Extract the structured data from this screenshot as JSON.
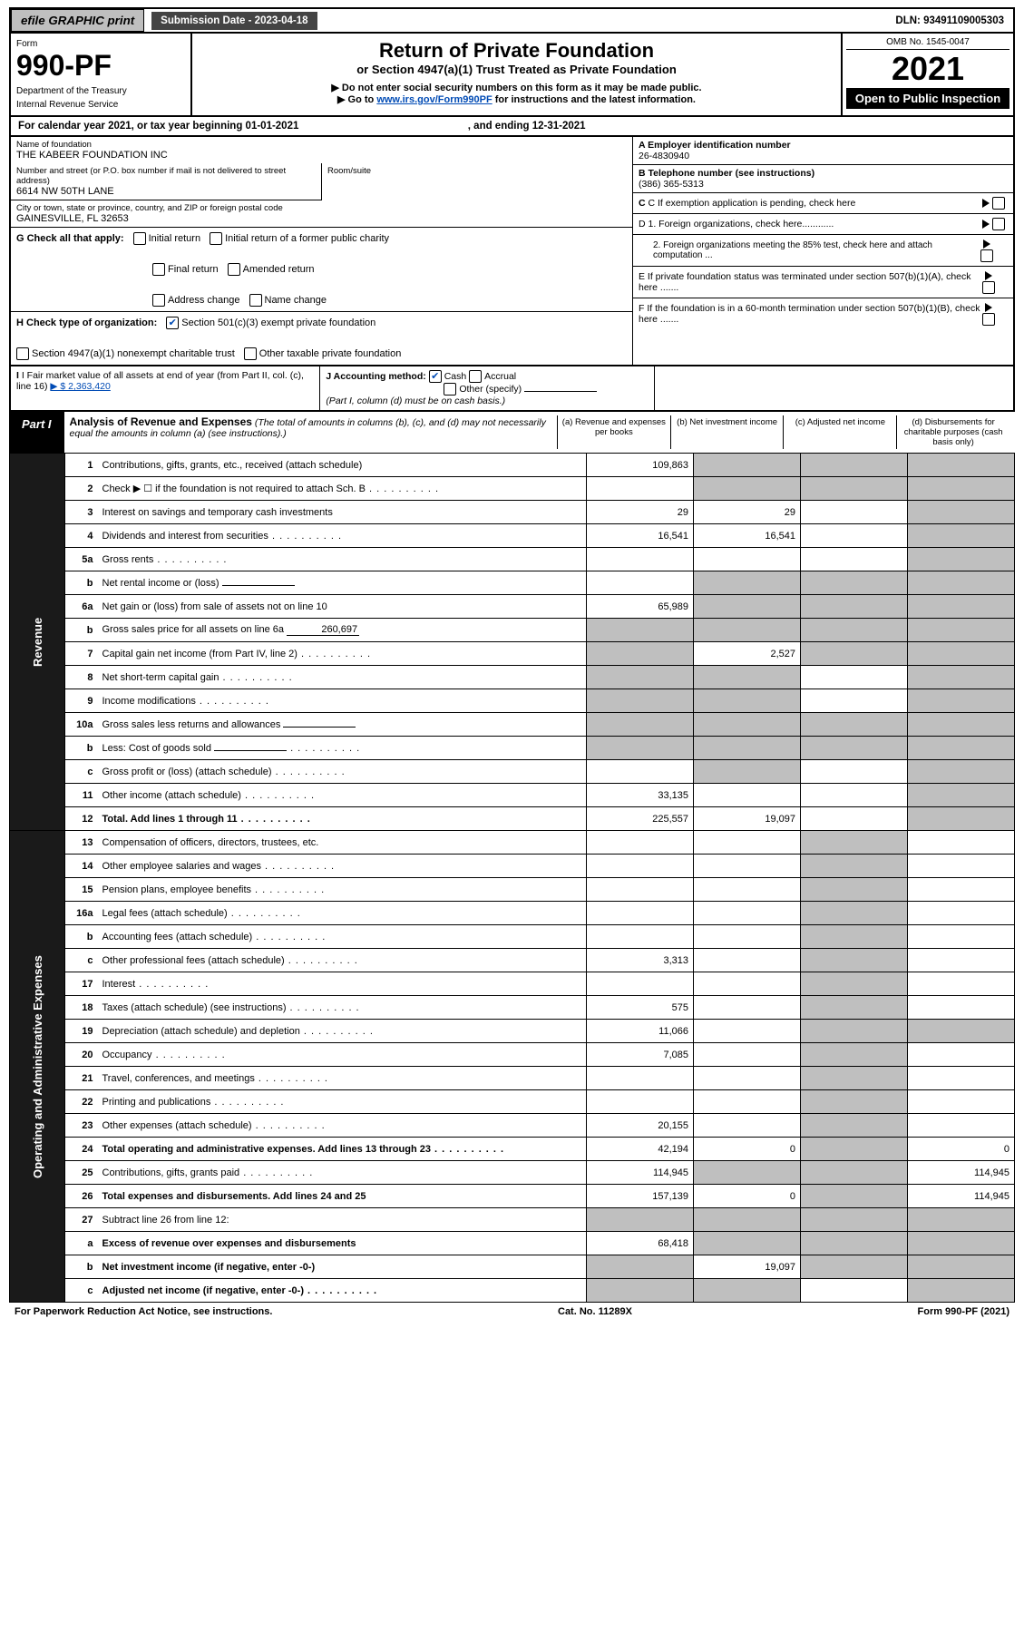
{
  "top": {
    "efile": "efile GRAPHIC print",
    "submission": "Submission Date - 2023-04-18",
    "dln": "DLN: 93491109005303"
  },
  "header": {
    "form_label": "Form",
    "form_no": "990-PF",
    "dept": "Department of the Treasury",
    "irs": "Internal Revenue Service",
    "title": "Return of Private Foundation",
    "subtitle": "or Section 4947(a)(1) Trust Treated as Private Foundation",
    "note1": "▶ Do not enter social security numbers on this form as it may be made public.",
    "note2_pre": "▶ Go to ",
    "note2_link": "www.irs.gov/Form990PF",
    "note2_post": " for instructions and the latest information.",
    "omb": "OMB No. 1545-0047",
    "year": "2021",
    "inspection": "Open to Public Inspection"
  },
  "cal": {
    "text_pre": "For calendar year 2021, or tax year beginning ",
    "begin": "01-01-2021",
    "text_mid": " , and ending ",
    "end": "12-31-2021"
  },
  "id": {
    "name_lbl": "Name of foundation",
    "name": "THE KABEER FOUNDATION INC",
    "addr_lbl": "Number and street (or P.O. box number if mail is not delivered to street address)",
    "addr": "6614 NW 50TH LANE",
    "room_lbl": "Room/suite",
    "city_lbl": "City or town, state or province, country, and ZIP or foreign postal code",
    "city": "GAINESVILLE, FL  32653",
    "A_lbl": "A Employer identification number",
    "A_val": "26-4830940",
    "B_lbl": "B Telephone number (see instructions)",
    "B_val": "(386) 365-5313",
    "C_lbl": "C If exemption application is pending, check here",
    "D1": "D 1. Foreign organizations, check here............",
    "D2": "2. Foreign organizations meeting the 85% test, check here and attach computation ...",
    "E": "E  If private foundation status was terminated under section 507(b)(1)(A), check here .......",
    "F": "F  If the foundation is in a 60-month termination under section 507(b)(1)(B), check here .......",
    "G_lbl": "G Check all that apply:",
    "G_opts": [
      "Initial return",
      "Initial return of a former public charity",
      "Final return",
      "Amended return",
      "Address change",
      "Name change"
    ],
    "H_lbl": "H Check type of organization:",
    "H_opt1": "Section 501(c)(3) exempt private foundation",
    "H_opt2": "Section 4947(a)(1) nonexempt charitable trust",
    "H_opt3": "Other taxable private foundation",
    "I_lbl": "I Fair market value of all assets at end of year (from Part II, col. (c), line 16)",
    "I_amt": "▶ $  2,363,420",
    "J_lbl": "J Accounting method:",
    "J_opts": [
      "Cash",
      "Accrual"
    ],
    "J_other": "Other (specify)",
    "J_note": "(Part I, column (d) must be on cash basis.)"
  },
  "part1": {
    "tag": "Part I",
    "title": "Analysis of Revenue and Expenses",
    "title_note": " (The total of amounts in columns (b), (c), and (d) may not necessarily equal the amounts in column (a) (see instructions).)",
    "col_a": "(a)   Revenue and expenses per books",
    "col_b": "(b)   Net investment income",
    "col_c": "(c)   Adjusted net income",
    "col_d": "(d)   Disbursements for charitable purposes (cash basis only)"
  },
  "side_labels": {
    "rev": "Revenue",
    "exp": "Operating and Administrative Expenses"
  },
  "rows": [
    {
      "n": "1",
      "t": "Contributions, gifts, grants, etc., received (attach schedule)",
      "a": "109,863",
      "bgrey": true,
      "cgrey": true,
      "dgrey": true
    },
    {
      "n": "2",
      "t": "Check ▶ ☐ if the foundation is not required to attach Sch. B",
      "dots": true,
      "a": "",
      "bgrey": true,
      "cgrey": true,
      "dgrey": true
    },
    {
      "n": "3",
      "t": "Interest on savings and temporary cash investments",
      "a": "29",
      "b": "29",
      "dgrey": true
    },
    {
      "n": "4",
      "t": "Dividends and interest from securities",
      "dots": true,
      "a": "16,541",
      "b": "16,541",
      "dgrey": true
    },
    {
      "n": "5a",
      "t": "Gross rents",
      "dots": true,
      "dgrey": true
    },
    {
      "n": "b",
      "t": "Net rental income or (loss)",
      "field": "",
      "bgrey": true,
      "cgrey": true,
      "dgrey": true
    },
    {
      "n": "6a",
      "t": "Net gain or (loss) from sale of assets not on line 10",
      "a": "65,989",
      "bgrey": true,
      "cgrey": true,
      "dgrey": true
    },
    {
      "n": "b",
      "t": "Gross sales price for all assets on line 6a",
      "field": "260,697",
      "bgrey": true,
      "cgrey": true,
      "dgrey": true,
      "agrey": true
    },
    {
      "n": "7",
      "t": "Capital gain net income (from Part IV, line 2)",
      "dots": true,
      "agrey": true,
      "b": "2,527",
      "cgrey": true,
      "dgrey": true
    },
    {
      "n": "8",
      "t": "Net short-term capital gain",
      "dots": true,
      "agrey": true,
      "bgrey": true,
      "dgrey": true
    },
    {
      "n": "9",
      "t": "Income modifications",
      "dots": true,
      "agrey": true,
      "bgrey": true,
      "dgrey": true
    },
    {
      "n": "10a",
      "t": "Gross sales less returns and allowances",
      "field": "",
      "agrey": true,
      "bgrey": true,
      "cgrey": true,
      "dgrey": true
    },
    {
      "n": "b",
      "t": "Less: Cost of goods sold",
      "dots": true,
      "field": "",
      "agrey": true,
      "bgrey": true,
      "cgrey": true,
      "dgrey": true
    },
    {
      "n": "c",
      "t": "Gross profit or (loss) (attach schedule)",
      "dots": true,
      "bgrey": true,
      "dgrey": true
    },
    {
      "n": "11",
      "t": "Other income (attach schedule)",
      "dots": true,
      "a": "33,135",
      "dgrey": true
    },
    {
      "n": "12",
      "t": "Total. Add lines 1 through 11",
      "dots": true,
      "bold": true,
      "a": "225,557",
      "b": "19,097",
      "dgrey": true
    },
    {
      "n": "13",
      "t": "Compensation of officers, directors, trustees, etc.",
      "cgrey": true
    },
    {
      "n": "14",
      "t": "Other employee salaries and wages",
      "dots": true,
      "cgrey": true
    },
    {
      "n": "15",
      "t": "Pension plans, employee benefits",
      "dots": true,
      "cgrey": true
    },
    {
      "n": "16a",
      "t": "Legal fees (attach schedule)",
      "dots": true,
      "cgrey": true
    },
    {
      "n": "b",
      "t": "Accounting fees (attach schedule)",
      "dots": true,
      "cgrey": true
    },
    {
      "n": "c",
      "t": "Other professional fees (attach schedule)",
      "dots": true,
      "a": "3,313",
      "cgrey": true
    },
    {
      "n": "17",
      "t": "Interest",
      "dots": true,
      "cgrey": true
    },
    {
      "n": "18",
      "t": "Taxes (attach schedule) (see instructions)",
      "dots": true,
      "a": "575",
      "cgrey": true
    },
    {
      "n": "19",
      "t": "Depreciation (attach schedule) and depletion",
      "dots": true,
      "a": "11,066",
      "cgrey": true,
      "dgrey": true
    },
    {
      "n": "20",
      "t": "Occupancy",
      "dots": true,
      "a": "7,085",
      "cgrey": true
    },
    {
      "n": "21",
      "t": "Travel, conferences, and meetings",
      "dots": true,
      "cgrey": true
    },
    {
      "n": "22",
      "t": "Printing and publications",
      "dots": true,
      "cgrey": true
    },
    {
      "n": "23",
      "t": "Other expenses (attach schedule)",
      "dots": true,
      "a": "20,155",
      "cgrey": true
    },
    {
      "n": "24",
      "t": "Total operating and administrative expenses. Add lines 13 through 23",
      "dots": true,
      "bold": true,
      "a": "42,194",
      "b": "0",
      "cgrey": true,
      "d": "0"
    },
    {
      "n": "25",
      "t": "Contributions, gifts, grants paid",
      "dots": true,
      "a": "114,945",
      "bgrey": true,
      "cgrey": true,
      "d": "114,945"
    },
    {
      "n": "26",
      "t": "Total expenses and disbursements. Add lines 24 and 25",
      "bold": true,
      "a": "157,139",
      "b": "0",
      "cgrey": true,
      "d": "114,945"
    },
    {
      "n": "27",
      "t": "Subtract line 26 from line 12:",
      "agrey": true,
      "bgrey": true,
      "cgrey": true,
      "dgrey": true
    },
    {
      "n": "a",
      "t": "Excess of revenue over expenses and disbursements",
      "bold": true,
      "a": "68,418",
      "bgrey": true,
      "cgrey": true,
      "dgrey": true
    },
    {
      "n": "b",
      "t": "Net investment income (if negative, enter -0-)",
      "bold": true,
      "agrey": true,
      "b": "19,097",
      "cgrey": true,
      "dgrey": true
    },
    {
      "n": "c",
      "t": "Adjusted net income (if negative, enter -0-)",
      "dots": true,
      "bold": true,
      "agrey": true,
      "bgrey": true,
      "dgrey": true
    }
  ],
  "footer": {
    "left": "For Paperwork Reduction Act Notice, see instructions.",
    "mid": "Cat. No. 11289X",
    "right": "Form 990-PF (2021)"
  },
  "colors": {
    "grey_cell": "#bfbfbf",
    "link": "#004bb5",
    "black": "#000000"
  }
}
